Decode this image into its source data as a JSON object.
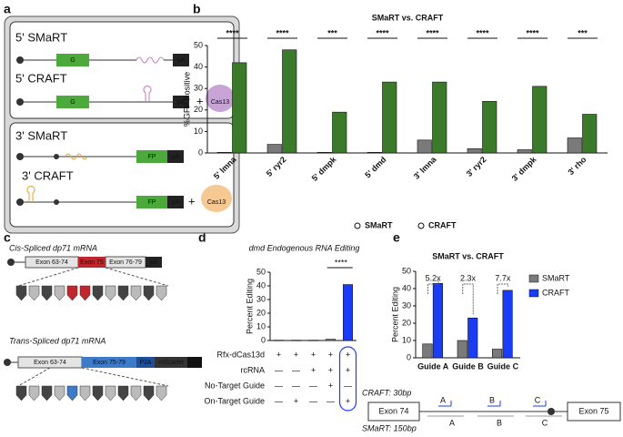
{
  "panel_labels": [
    "a",
    "b",
    "c",
    "d",
    "e"
  ],
  "diagram_a": {
    "constructs": [
      "5' SMaRT",
      "5' CRAFT",
      "3' SMaRT",
      "3' CRAFT"
    ],
    "gene_5": "G",
    "gene_3": "FP",
    "polyA": "pA",
    "plus": "+",
    "effector": "Cas13"
  },
  "diagram_c": {
    "cis_title": "Cis-Spliced dp71 mRNA",
    "cis_exons": [
      "Exon 63-74",
      "Exon 75",
      "Exon 76-79",
      "pA"
    ],
    "trans_title": "Trans-Spliced dp71 mRNA",
    "trans_exons": [
      "Exon 63-74",
      "Exon 75-79",
      "P2A",
      "mScarlet",
      "pA"
    ]
  },
  "diagram_guides": {
    "craft_len": "CRAFT: 30bp",
    "smart_len": "SMaRT: 150bp",
    "exon_left": "Exon 74",
    "exon_right": "Exon 75",
    "guides": [
      "A",
      "B",
      "C"
    ]
  },
  "chart_data": [
    {
      "type": "bar",
      "title": "SMaRT vs. CRAFT",
      "ylabel": "%GFP Positive",
      "categories": [
        "5' lmna",
        "5' ryr2",
        "5' dmpk",
        "5' dmd",
        "3' lmna",
        "3' ryr2",
        "3' dmpk",
        "3' rho"
      ],
      "series": [
        {
          "name": "SMaRT",
          "color": "#7a7a7a",
          "values": [
            0.3,
            4,
            0.3,
            0.3,
            6,
            2,
            1.5,
            7
          ]
        },
        {
          "name": "CRAFT",
          "color": "#3b7a2a",
          "values": [
            42,
            48,
            19,
            33,
            33,
            24,
            31,
            18
          ]
        }
      ],
      "significance": [
        "****",
        "****",
        "***",
        "****",
        "****",
        "****",
        "****",
        "***"
      ],
      "ylim": [
        0,
        50
      ],
      "yticks": [
        0,
        10,
        20,
        30,
        40,
        50
      ],
      "legend": "bottom"
    },
    {
      "type": "bar",
      "title": "dmd Endogenous RNA Editing",
      "ylabel": "Percent Editing",
      "values": [
        0.3,
        0.3,
        0.3,
        1,
        41
      ],
      "colors": [
        "#7a7a7a",
        "#7a7a7a",
        "#7a7a7a",
        "#7a7a7a",
        "#1a3cf5"
      ],
      "significance": "****",
      "ylim": [
        0,
        50
      ],
      "yticks": [
        0,
        10,
        20,
        30,
        40,
        50
      ],
      "table": [
        {
          "label": "Rfx-dCas13d",
          "cells": [
            "+",
            "+",
            "+",
            "+",
            "+"
          ]
        },
        {
          "label": "rcRNA",
          "cells": [
            "—",
            "—",
            "+",
            "+",
            "+"
          ]
        },
        {
          "label": "No-Target Guide",
          "cells": [
            "—",
            "—",
            "—",
            "+",
            "—"
          ]
        },
        {
          "label": "On-Target Guide",
          "cells": [
            "—",
            "+",
            "—",
            "—",
            "+"
          ]
        }
      ]
    },
    {
      "type": "bar",
      "title": "SMaRT vs. CRAFT",
      "ylabel": "Percent Editing",
      "categories": [
        "Guide A",
        "Guide B",
        "Guide C"
      ],
      "series": [
        {
          "name": "SMaRT",
          "color": "#7a7a7a",
          "values": [
            8,
            10,
            5
          ]
        },
        {
          "name": "CRAFT",
          "color": "#1a3cf5",
          "values": [
            43,
            23,
            39
          ]
        }
      ],
      "annotations": [
        "5.2x",
        "2.3x",
        "7.7x"
      ],
      "ylim": [
        0,
        50
      ],
      "yticks": [
        0,
        10,
        20,
        30,
        40,
        50
      ],
      "legend": "right"
    }
  ]
}
